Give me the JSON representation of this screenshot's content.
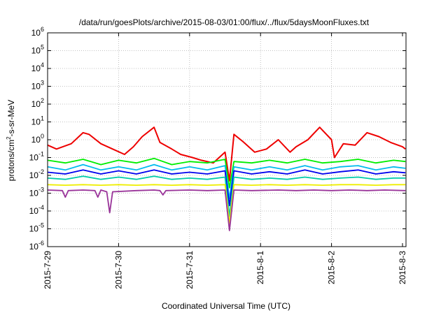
{
  "chart_data": {
    "type": "line",
    "title": "/data/run/goesPlots/archive/2015-08-03/01:00/flux/../flux/5daysMoonFluxes.txt",
    "xlabel": "Coordinated Universal Time (UTC)",
    "ylabel_main": "protons/cm",
    "ylabel_sup": "2",
    "ylabel_rest": "-s-sr-MeV",
    "y_scale": "log",
    "ylim": [
      1e-06,
      1000000.0
    ],
    "y_ticks": [
      {
        "value": 1000000.0,
        "base": "10",
        "exp": "6"
      },
      {
        "value": 100000.0,
        "base": "10",
        "exp": "5"
      },
      {
        "value": 10000.0,
        "base": "10",
        "exp": "4"
      },
      {
        "value": 1000.0,
        "base": "10",
        "exp": "3"
      },
      {
        "value": 100.0,
        "base": "10",
        "exp": "2"
      },
      {
        "value": 10.0,
        "base": "10",
        "exp": "1"
      },
      {
        "value": 1.0,
        "base": "10",
        "exp": "0"
      },
      {
        "value": 0.1,
        "base": "10",
        "exp": "-1"
      },
      {
        "value": 0.01,
        "base": "10",
        "exp": "-2"
      },
      {
        "value": 0.001,
        "base": "10",
        "exp": "-3"
      },
      {
        "value": 0.0001,
        "base": "10",
        "exp": "-4"
      },
      {
        "value": 1e-05,
        "base": "10",
        "exp": "-5"
      },
      {
        "value": 1e-06,
        "base": "10",
        "exp": "-6"
      }
    ],
    "x_range": [
      "2015-07-29T00:00",
      "2015-08-03T00:00"
    ],
    "x_ticks": [
      {
        "date": "2015-07-29T00:00",
        "label": "2015-7-29"
      },
      {
        "date": "2015-07-30T00:00",
        "label": "2015-7-30"
      },
      {
        "date": "2015-07-31T00:00",
        "label": "2015-7-31"
      },
      {
        "date": "2015-08-01T00:00",
        "label": "2015-8-1"
      },
      {
        "date": "2015-08-02T00:00",
        "label": "2015-8-2"
      },
      {
        "date": "2015-08-03T00:00",
        "label": "2015-8-3"
      }
    ],
    "grid": true,
    "series": [
      {
        "color": "#ee0000",
        "x": [
          "2015-07-28T23:00",
          "2015-07-29T03:00",
          "2015-07-29T08:00",
          "2015-07-29T12:00",
          "2015-07-29T14:00",
          "2015-07-29T18:00",
          "2015-07-29T22:00",
          "2015-07-30T02:00",
          "2015-07-30T05:00",
          "2015-07-30T08:00",
          "2015-07-30T12:00",
          "2015-07-30T14:00",
          "2015-07-30T18:00",
          "2015-07-30T21:00",
          "2015-07-31T01:00",
          "2015-07-31T04:00",
          "2015-07-31T08:00",
          "2015-07-31T12:00",
          "2015-07-31T13:30",
          "2015-07-31T15:00",
          "2015-07-31T18:00",
          "2015-07-31T22:00",
          "2015-08-01T02:00",
          "2015-08-01T06:00",
          "2015-08-01T10:00",
          "2015-08-01T12:00",
          "2015-08-01T16:00",
          "2015-08-01T20:00",
          "2015-08-02T00:00",
          "2015-08-02T01:00",
          "2015-08-02T04:00",
          "2015-08-02T08:00",
          "2015-08-02T12:00",
          "2015-08-02T16:00",
          "2015-08-02T20:00",
          "2015-08-03T00:00",
          "2015-08-03T01:00"
        ],
        "y": [
          0.5,
          0.3,
          0.6,
          2.5,
          2.0,
          0.6,
          0.3,
          0.15,
          0.4,
          1.5,
          5.0,
          0.7,
          0.3,
          0.15,
          0.1,
          0.07,
          0.05,
          0.2,
          0.005,
          2.0,
          0.8,
          0.2,
          0.3,
          1.0,
          0.2,
          0.4,
          1.0,
          5.0,
          1.0,
          0.1,
          0.6,
          0.5,
          2.5,
          1.5,
          0.7,
          0.4,
          0.3
        ]
      },
      {
        "color": "#00ee00",
        "x": [
          "2015-07-28T23:00",
          "2015-07-29T06:00",
          "2015-07-29T12:00",
          "2015-07-29T18:00",
          "2015-07-30T00:00",
          "2015-07-30T06:00",
          "2015-07-30T12:00",
          "2015-07-30T18:00",
          "2015-07-31T00:00",
          "2015-07-31T06:00",
          "2015-07-31T12:00",
          "2015-07-31T13:30",
          "2015-07-31T15:00",
          "2015-07-31T21:00",
          "2015-08-01T03:00",
          "2015-08-01T09:00",
          "2015-08-01T15:00",
          "2015-08-01T21:00",
          "2015-08-02T03:00",
          "2015-08-02T09:00",
          "2015-08-02T15:00",
          "2015-08-02T21:00",
          "2015-08-03T01:00"
        ],
        "y": [
          0.07,
          0.05,
          0.08,
          0.04,
          0.07,
          0.05,
          0.09,
          0.04,
          0.06,
          0.05,
          0.08,
          0.002,
          0.06,
          0.05,
          0.07,
          0.05,
          0.08,
          0.05,
          0.06,
          0.08,
          0.05,
          0.07,
          0.06
        ]
      },
      {
        "color": "#00bbee",
        "x": [
          "2015-07-28T23:00",
          "2015-07-29T06:00",
          "2015-07-29T12:00",
          "2015-07-29T18:00",
          "2015-07-30T00:00",
          "2015-07-30T06:00",
          "2015-07-30T12:00",
          "2015-07-30T18:00",
          "2015-07-31T00:00",
          "2015-07-31T06:00",
          "2015-07-31T12:00",
          "2015-07-31T13:30",
          "2015-07-31T15:00",
          "2015-07-31T21:00",
          "2015-08-01T03:00",
          "2015-08-01T09:00",
          "2015-08-01T15:00",
          "2015-08-01T21:00",
          "2015-08-02T03:00",
          "2015-08-02T09:00",
          "2015-08-02T15:00",
          "2015-08-02T21:00",
          "2015-08-03T01:00"
        ],
        "y": [
          0.03,
          0.02,
          0.04,
          0.02,
          0.03,
          0.02,
          0.04,
          0.02,
          0.03,
          0.02,
          0.035,
          0.0005,
          0.03,
          0.02,
          0.03,
          0.02,
          0.035,
          0.02,
          0.03,
          0.035,
          0.02,
          0.03,
          0.025
        ]
      },
      {
        "color": "#0000ee",
        "x": [
          "2015-07-28T23:00",
          "2015-07-29T06:00",
          "2015-07-29T12:00",
          "2015-07-29T18:00",
          "2015-07-30T00:00",
          "2015-07-30T06:00",
          "2015-07-30T12:00",
          "2015-07-30T18:00",
          "2015-07-31T00:00",
          "2015-07-31T06:00",
          "2015-07-31T12:00",
          "2015-07-31T13:30",
          "2015-07-31T15:00",
          "2015-07-31T21:00",
          "2015-08-01T03:00",
          "2015-08-01T09:00",
          "2015-08-01T15:00",
          "2015-08-01T21:00",
          "2015-08-02T03:00",
          "2015-08-02T09:00",
          "2015-08-02T15:00",
          "2015-08-02T21:00",
          "2015-08-03T01:00"
        ],
        "y": [
          0.015,
          0.012,
          0.02,
          0.012,
          0.018,
          0.012,
          0.02,
          0.012,
          0.015,
          0.012,
          0.018,
          0.0002,
          0.018,
          0.012,
          0.016,
          0.012,
          0.02,
          0.012,
          0.016,
          0.02,
          0.012,
          0.016,
          0.014
        ]
      },
      {
        "color": "#00ccaa",
        "x": [
          "2015-07-28T23:00",
          "2015-07-29T06:00",
          "2015-07-29T12:00",
          "2015-07-29T18:00",
          "2015-07-30T00:00",
          "2015-07-30T06:00",
          "2015-07-30T12:00",
          "2015-07-30T18:00",
          "2015-07-31T00:00",
          "2015-07-31T06:00",
          "2015-07-31T12:00",
          "2015-07-31T13:30",
          "2015-07-31T15:00",
          "2015-07-31T21:00",
          "2015-08-01T03:00",
          "2015-08-01T09:00",
          "2015-08-01T15:00",
          "2015-08-01T21:00",
          "2015-08-02T03:00",
          "2015-08-02T09:00",
          "2015-08-02T15:00",
          "2015-08-02T21:00",
          "2015-08-03T01:00"
        ],
        "y": [
          0.007,
          0.006,
          0.009,
          0.006,
          0.008,
          0.006,
          0.009,
          0.006,
          0.007,
          0.006,
          0.008,
          5e-05,
          0.008,
          0.006,
          0.007,
          0.006,
          0.008,
          0.006,
          0.007,
          0.008,
          0.006,
          0.007,
          0.007
        ]
      },
      {
        "color": "#eeee00",
        "x": [
          "2015-07-28T23:00",
          "2015-07-29T06:00",
          "2015-07-29T12:00",
          "2015-07-29T18:00",
          "2015-07-30T00:00",
          "2015-07-30T06:00",
          "2015-07-30T12:00",
          "2015-07-30T18:00",
          "2015-07-31T00:00",
          "2015-07-31T06:00",
          "2015-07-31T12:00",
          "2015-07-31T13:30",
          "2015-07-31T15:00",
          "2015-07-31T21:00",
          "2015-08-01T03:00",
          "2015-08-01T09:00",
          "2015-08-01T15:00",
          "2015-08-01T21:00",
          "2015-08-02T03:00",
          "2015-08-02T09:00",
          "2015-08-02T15:00",
          "2015-08-02T21:00",
          "2015-08-03T01:00"
        ],
        "y": [
          0.003,
          0.0028,
          0.003,
          0.0028,
          0.003,
          0.0028,
          0.003,
          0.0028,
          0.003,
          0.0028,
          0.003,
          2e-05,
          0.003,
          0.0028,
          0.003,
          0.0028,
          0.003,
          0.0028,
          0.003,
          0.003,
          0.0028,
          0.003,
          0.003
        ]
      },
      {
        "color": "#993399",
        "x": [
          "2015-07-28T23:00",
          "2015-07-29T05:00",
          "2015-07-29T06:00",
          "2015-07-29T07:00",
          "2015-07-29T12:00",
          "2015-07-29T16:00",
          "2015-07-29T17:00",
          "2015-07-29T18:00",
          "2015-07-29T20:00",
          "2015-07-29T21:00",
          "2015-07-29T22:00",
          "2015-07-30T06:00",
          "2015-07-30T12:00",
          "2015-07-30T14:00",
          "2015-07-30T15:00",
          "2015-07-30T16:00",
          "2015-07-31T00:00",
          "2015-07-31T06:00",
          "2015-07-31T12:00",
          "2015-07-31T13:30",
          "2015-07-31T15:00",
          "2015-07-31T21:00",
          "2015-08-01T06:00",
          "2015-08-01T12:00",
          "2015-08-01T18:00",
          "2015-08-02T00:00",
          "2015-08-02T06:00",
          "2015-08-02T12:00",
          "2015-08-02T18:00",
          "2015-08-03T01:00"
        ],
        "y": [
          0.0015,
          0.0014,
          0.0006,
          0.0014,
          0.0015,
          0.0014,
          0.0006,
          0.0015,
          0.0012,
          8e-05,
          0.0012,
          0.0014,
          0.0015,
          0.0014,
          0.0008,
          0.0014,
          0.0015,
          0.0014,
          0.0015,
          8e-06,
          0.0015,
          0.0014,
          0.0015,
          0.0014,
          0.0015,
          0.0014,
          0.0015,
          0.0014,
          0.0015,
          0.0014
        ]
      }
    ]
  }
}
